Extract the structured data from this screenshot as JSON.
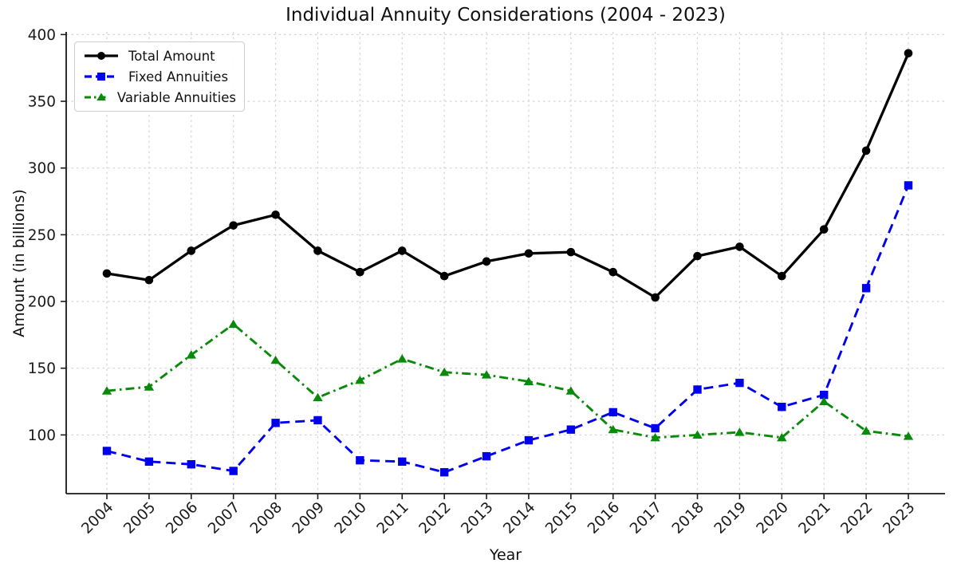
{
  "chart_data": {
    "type": "line",
    "title": "Individual Annuity Considerations (2004 - 2023)",
    "xlabel": "Year",
    "ylabel": "Amount (in billions)",
    "x": [
      2004,
      2005,
      2006,
      2007,
      2008,
      2009,
      2010,
      2011,
      2012,
      2013,
      2014,
      2015,
      2016,
      2017,
      2018,
      2019,
      2020,
      2021,
      2022,
      2023
    ],
    "series": [
      {
        "name": "Total Amount",
        "color": "#000000",
        "linestyle": "solid",
        "marker": "circle",
        "values": [
          221,
          216,
          238,
          257,
          265,
          238,
          222,
          238,
          219,
          230,
          236,
          237,
          222,
          203,
          234,
          241,
          219,
          254,
          313,
          386
        ]
      },
      {
        "name": "Fixed Annuities",
        "color": "#0000ee",
        "linestyle": "dashed",
        "marker": "square",
        "values": [
          88,
          80,
          78,
          73,
          109,
          111,
          81,
          80,
          72,
          84,
          96,
          104,
          117,
          105,
          134,
          139,
          121,
          130,
          210,
          287
        ]
      },
      {
        "name": "Variable Annuities",
        "color": "#0a8a0a",
        "linestyle": "dashdot",
        "marker": "triangle",
        "values": [
          133,
          136,
          160,
          183,
          156,
          128,
          141,
          157,
          147,
          145,
          140,
          133,
          104,
          98,
          100,
          102,
          98,
          125,
          103,
          99
        ]
      }
    ],
    "ylim": [
      56,
      402
    ],
    "yticks": [
      100,
      150,
      200,
      250,
      300,
      350,
      400
    ],
    "xtick_rotation_deg": 45,
    "grid": true,
    "grid_color": "#d3d3d3",
    "legend_position": "upper left"
  }
}
